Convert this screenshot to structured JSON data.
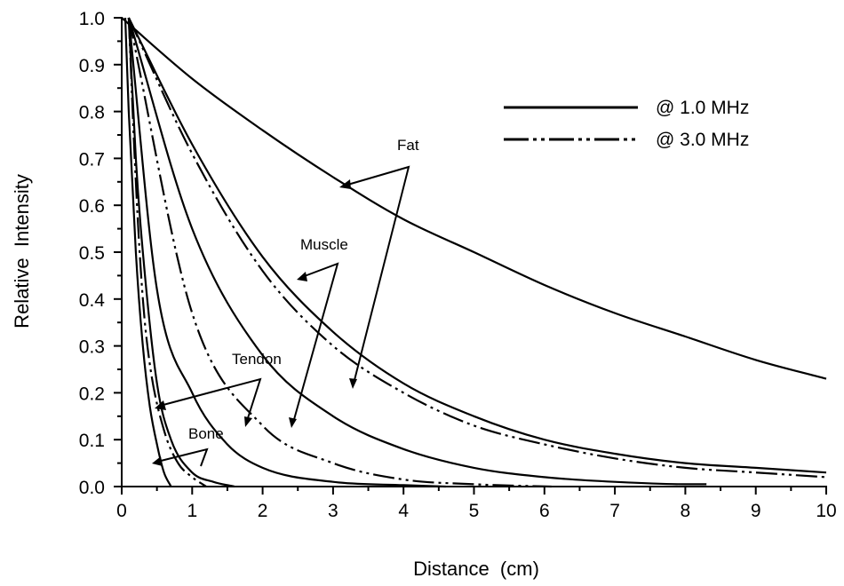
{
  "chart_data": {
    "type": "line",
    "title": "",
    "xlabel": "Distance  (cm)",
    "ylabel": "Relative  Intensity",
    "xlim": [
      0,
      10
    ],
    "ylim": [
      0,
      1.0
    ],
    "x_ticks": [
      "0",
      "1",
      "2",
      "3",
      "4",
      "5",
      "6",
      "7",
      "8",
      "9",
      "10"
    ],
    "y_ticks": [
      "0.0",
      "0.1",
      "0.2",
      "0.3",
      "0.4",
      "0.5",
      "0.6",
      "0.7",
      "0.8",
      "0.9",
      "1.0"
    ],
    "legend": {
      "position": "top-right",
      "entries": [
        {
          "label": "@ 1.0 MHz",
          "style": "solid"
        },
        {
          "label": "@ 3.0 MHz",
          "style": "dash-dot"
        }
      ]
    },
    "series": [
      {
        "tissue": "Fat",
        "freq": "1.0 MHz",
        "style": "solid",
        "x_start": 0.0,
        "x_end": 10.0,
        "x": [
          0,
          1,
          2,
          3,
          4,
          5,
          6,
          7,
          8,
          9,
          10
        ],
        "y": [
          1.0,
          0.87,
          0.76,
          0.66,
          0.57,
          0.5,
          0.43,
          0.37,
          0.32,
          0.27,
          0.23
        ]
      },
      {
        "tissue": "Muscle",
        "freq": "1.0 MHz",
        "style": "solid",
        "x_start": 0.1,
        "x_end": 10.0,
        "x": [
          0.1,
          1,
          2,
          3,
          4,
          5,
          6,
          7,
          8,
          9,
          10
        ],
        "y": [
          1.0,
          0.73,
          0.49,
          0.33,
          0.22,
          0.15,
          0.1,
          0.07,
          0.05,
          0.04,
          0.03
        ]
      },
      {
        "tissue": "Fat",
        "freq": "3.0 MHz",
        "style": "dash-dot",
        "x_start": 0.1,
        "x_end": 10.0,
        "x": [
          0.1,
          1,
          2,
          3,
          4,
          5,
          6,
          7,
          8,
          9,
          10
        ],
        "y": [
          1.0,
          0.71,
          0.46,
          0.3,
          0.2,
          0.13,
          0.09,
          0.06,
          0.04,
          0.03,
          0.02
        ]
      },
      {
        "tissue": "Tendon",
        "freq": "1.0 MHz",
        "style": "solid",
        "x_start": 0.1,
        "x_end": 8.3,
        "x": [
          0.1,
          1,
          2,
          3,
          4,
          5,
          6,
          7,
          8,
          8.3
        ],
        "y": [
          1.0,
          0.55,
          0.28,
          0.15,
          0.08,
          0.04,
          0.02,
          0.01,
          0.005,
          0.005
        ]
      },
      {
        "tissue": "Muscle",
        "freq": "3.0 MHz",
        "style": "dash-dot",
        "x_start": 0.1,
        "x_end": 6.1,
        "x": [
          0.1,
          1,
          2,
          3,
          4,
          5,
          6.1
        ],
        "y": [
          1.0,
          0.37,
          0.13,
          0.05,
          0.015,
          0.005,
          0.0
        ]
      },
      {
        "tissue": "Tendon",
        "freq": "3.0 MHz",
        "style": "solid",
        "x_start": 0.1,
        "x_end": 4.6,
        "x": [
          0.1,
          0.5,
          1,
          1.5,
          2,
          3,
          4,
          4.6
        ],
        "y": [
          1.0,
          0.42,
          0.2,
          0.09,
          0.04,
          0.01,
          0.003,
          0.0
        ]
      },
      {
        "tissue": "Bone",
        "freq": "1.0 MHz",
        "style": "solid",
        "x_start": 0.1,
        "x_end": 1.6,
        "x": [
          0.1,
          0.2,
          0.3,
          0.5,
          0.7,
          1.0,
          1.3,
          1.6
        ],
        "y": [
          1.0,
          0.7,
          0.5,
          0.22,
          0.1,
          0.03,
          0.01,
          0.0
        ]
      },
      {
        "tissue": "Bone",
        "freq": "3.0 MHz",
        "style": "dash-dot",
        "x_start": 0.1,
        "x_end": 1.2,
        "x": [
          0.1,
          0.2,
          0.3,
          0.4,
          0.6,
          0.8,
          1.0,
          1.2
        ],
        "y": [
          1.0,
          0.65,
          0.4,
          0.26,
          0.12,
          0.05,
          0.02,
          0.0
        ]
      },
      {
        "tissue": "Bone",
        "freq": "3.0 MHz",
        "style": "solid",
        "x_start": 0.05,
        "x_end": 0.7,
        "x": [
          0.05,
          0.1,
          0.2,
          0.3,
          0.4,
          0.5,
          0.6,
          0.7
        ],
        "y": [
          1.0,
          0.8,
          0.5,
          0.3,
          0.17,
          0.09,
          0.03,
          0.0
        ]
      }
    ],
    "annotations": [
      {
        "text": "Fat",
        "points_to": "Fat curves"
      },
      {
        "text": "Muscle",
        "points_to": "Muscle curves"
      },
      {
        "text": "Tendon",
        "points_to": "Tendon curves"
      },
      {
        "text": "Bone",
        "points_to": "Bone curves"
      }
    ]
  }
}
